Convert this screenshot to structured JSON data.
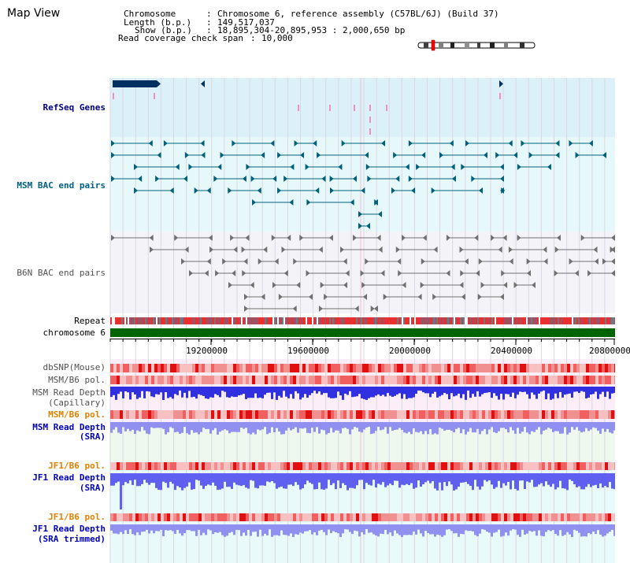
{
  "title": "Map View",
  "info": {
    "chromosome_key": "Chromosome",
    "chromosome_val": "Chromosome 6, reference assembly (C57BL/6J) (Build 37)",
    "length_key": "Length (b.p.)",
    "length_val": "149,517,037",
    "show_key": "Show (b.p.)",
    "show_val": "18,895,304-20,895,953 : 2,000,650 bp",
    "coverage_key": "Read coverage check span",
    "coverage_val": "10,000"
  },
  "tracks": {
    "refseq": "RefSeq Genes",
    "msm_bac": "MSM BAC end pairs",
    "b6n_bac": "B6N BAC end pairs",
    "repeat": "Repeat",
    "chromosome": "chromosome 6",
    "dbsnp": "dbSNP(Mouse)",
    "msm_b6_pol_1": "MSM/B6 pol.",
    "msm_depth_cap_1": "MSM Read Depth",
    "msm_depth_cap_2": "(Capillary)",
    "msm_b6_pol_2": "MSM/B6 pol.",
    "msm_depth_sra_1": "MSM Read Depth",
    "msm_depth_sra_2": "(SRA)",
    "jf1_b6_pol_1": "JF1/B6 pol.",
    "jf1_depth_sra_1": "JF1 Read Depth",
    "jf1_depth_sra_2": "(SRA)",
    "jf1_b6_pol_2": "JF1/B6 pol.",
    "jf1_depth_trim_1": "JF1 Read Depth",
    "jf1_depth_trim_2": "(SRA trimmed)"
  },
  "scale_ticks": [
    "19200000",
    "19600000",
    "20000000",
    "20400000",
    "20800000"
  ],
  "colors": {
    "refseq_bg": "#dcf0fa",
    "msm_bg": "#e6f8fa",
    "b6n_bg": "#f4f4f8",
    "chromosome": "#006400",
    "depth_blue": "#3030e0",
    "pol_red": "#e81010"
  }
}
